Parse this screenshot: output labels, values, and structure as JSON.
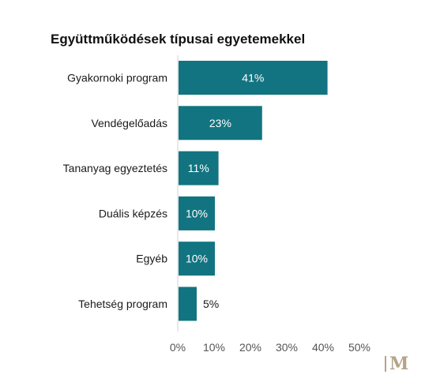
{
  "chart_data": {
    "type": "bar",
    "orientation": "horizontal",
    "title": "Együttműködések típusai egyetemekkel",
    "categories": [
      "Gyakornoki program",
      "Vendégelőadás",
      "Tananyag egyeztetés",
      "Duális képzés",
      "Egyéb",
      "Tehetség program"
    ],
    "values": [
      41,
      23,
      11,
      10,
      10,
      5
    ],
    "data_labels": [
      "41%",
      "23%",
      "11%",
      "10%",
      "10%",
      "5%"
    ],
    "x_ticks": [
      "0%",
      "10%",
      "20%",
      "30%",
      "40%",
      "50%"
    ],
    "xlim": [
      0,
      50
    ],
    "xlabel": "",
    "ylabel": "",
    "grid": false,
    "bar_color": "#127480"
  },
  "logo": {
    "text": "M"
  }
}
